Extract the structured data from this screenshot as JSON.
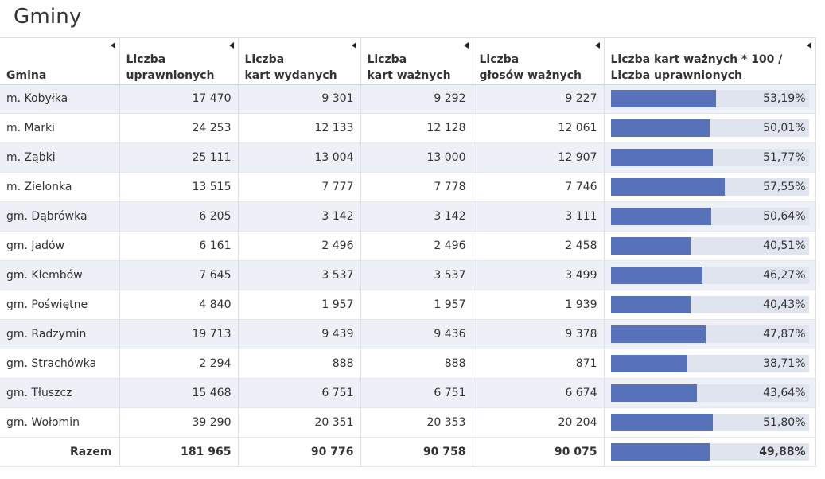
{
  "title": "Gminy",
  "columns": {
    "gmina": [
      "Gmina"
    ],
    "uprawnionych": [
      "Liczba",
      "uprawnionych"
    ],
    "wydanych": [
      "Liczba",
      "kart wydanych"
    ],
    "waznych": [
      "Liczba",
      "kart ważnych"
    ],
    "glosow": [
      "Liczba",
      "głosów ważnych"
    ],
    "frekwencja": [
      "Liczba kart ważnych * 100 /",
      "Liczba uprawnionych"
    ]
  },
  "rows": [
    {
      "gmina": "m. Kobyłka",
      "uprawnionych": "17 470",
      "wydanych": "9 301",
      "waznych": "9 292",
      "glosow": "9 227",
      "frekwencja": "53,19%",
      "pct": 53.19
    },
    {
      "gmina": "m. Marki",
      "uprawnionych": "24 253",
      "wydanych": "12 133",
      "waznych": "12 128",
      "glosow": "12 061",
      "frekwencja": "50,01%",
      "pct": 50.01
    },
    {
      "gmina": "m. Ząbki",
      "uprawnionych": "25 111",
      "wydanych": "13 004",
      "waznych": "13 000",
      "glosow": "12 907",
      "frekwencja": "51,77%",
      "pct": 51.77
    },
    {
      "gmina": "m. Zielonka",
      "uprawnionych": "13 515",
      "wydanych": "7 777",
      "waznych": "7 778",
      "glosow": "7 746",
      "frekwencja": "57,55%",
      "pct": 57.55
    },
    {
      "gmina": "gm. Dąbrówka",
      "uprawnionych": "6 205",
      "wydanych": "3 142",
      "waznych": "3 142",
      "glosow": "3 111",
      "frekwencja": "50,64%",
      "pct": 50.64
    },
    {
      "gmina": "gm. Jadów",
      "uprawnionych": "6 161",
      "wydanych": "2 496",
      "waznych": "2 496",
      "glosow": "2 458",
      "frekwencja": "40,51%",
      "pct": 40.51
    },
    {
      "gmina": "gm. Klembów",
      "uprawnionych": "7 645",
      "wydanych": "3 537",
      "waznych": "3 537",
      "glosow": "3 499",
      "frekwencja": "46,27%",
      "pct": 46.27
    },
    {
      "gmina": "gm. Poświętne",
      "uprawnionych": "4 840",
      "wydanych": "1 957",
      "waznych": "1 957",
      "glosow": "1 939",
      "frekwencja": "40,43%",
      "pct": 40.43
    },
    {
      "gmina": "gm. Radzymin",
      "uprawnionych": "19 713",
      "wydanych": "9 439",
      "waznych": "9 436",
      "glosow": "9 378",
      "frekwencja": "47,87%",
      "pct": 47.87
    },
    {
      "gmina": "gm. Strachówka",
      "uprawnionych": "2 294",
      "wydanych": "888",
      "waznych": "888",
      "glosow": "871",
      "frekwencja": "38,71%",
      "pct": 38.71
    },
    {
      "gmina": "gm. Tłuszcz",
      "uprawnionych": "15 468",
      "wydanych": "6 751",
      "waznych": "6 751",
      "glosow": "6 674",
      "frekwencja": "43,64%",
      "pct": 43.64
    },
    {
      "gmina": "gm. Wołomin",
      "uprawnionych": "39 290",
      "wydanych": "20 351",
      "waznych": "20 353",
      "glosow": "20 204",
      "frekwencja": "51,80%",
      "pct": 51.8
    }
  ],
  "total": {
    "gmina": "Razem",
    "uprawnionych": "181 965",
    "wydanych": "90 776",
    "waznych": "90 758",
    "glosow": "90 075",
    "frekwencja": "49,88%",
    "pct": 49.88
  },
  "bar_scale_max_pct": 100,
  "colors": {
    "bar_fill": "#5872b9",
    "bar_track": "#dfe4ef",
    "row_stripe": "#edf0f7"
  }
}
